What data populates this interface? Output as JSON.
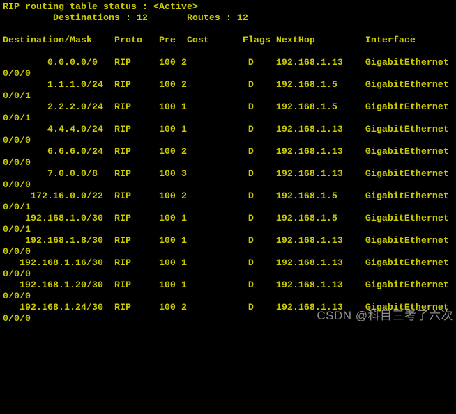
{
  "colors": {
    "background": "#000000",
    "terminal_text": "#cbcb00",
    "watermark_text": "#a8a8a8"
  },
  "terminal": {
    "title": "RIP routing table status : <Active>",
    "summary": {
      "destinations": "Destinations : 12",
      "routes": "Routes : 12"
    },
    "columns": [
      "Destination/Mask",
      "Proto",
      "Pre",
      "Cost",
      "Flags",
      "NextHop",
      "Interface"
    ],
    "routes": [
      {
        "ip": "0.0.0.0",
        "mask": "/0",
        "proto": "RIP",
        "pre": "100",
        "cost": "2",
        "flags": "D",
        "nexthop": "192.168.1.13",
        "interface": "GigabitEthernet",
        "interface_wrap": "0/0/0"
      },
      {
        "ip": "1.1.1.0",
        "mask": "/24",
        "proto": "RIP",
        "pre": "100",
        "cost": "2",
        "flags": "D",
        "nexthop": "192.168.1.5",
        "interface": "GigabitEthernet",
        "interface_wrap": "0/0/1"
      },
      {
        "ip": "2.2.2.0",
        "mask": "/24",
        "proto": "RIP",
        "pre": "100",
        "cost": "1",
        "flags": "D",
        "nexthop": "192.168.1.5",
        "interface": "GigabitEthernet",
        "interface_wrap": "0/0/1"
      },
      {
        "ip": "4.4.4.0",
        "mask": "/24",
        "proto": "RIP",
        "pre": "100",
        "cost": "1",
        "flags": "D",
        "nexthop": "192.168.1.13",
        "interface": "GigabitEthernet",
        "interface_wrap": "0/0/0"
      },
      {
        "ip": "6.6.6.0",
        "mask": "/24",
        "proto": "RIP",
        "pre": "100",
        "cost": "2",
        "flags": "D",
        "nexthop": "192.168.1.13",
        "interface": "GigabitEthernet",
        "interface_wrap": "0/0/0"
      },
      {
        "ip": "7.0.0.0",
        "mask": "/8",
        "proto": "RIP",
        "pre": "100",
        "cost": "3",
        "flags": "D",
        "nexthop": "192.168.1.13",
        "interface": "GigabitEthernet",
        "interface_wrap": "0/0/0"
      },
      {
        "ip": "172.16.0.0",
        "mask": "/22",
        "proto": "RIP",
        "pre": "100",
        "cost": "2",
        "flags": "D",
        "nexthop": "192.168.1.5",
        "interface": "GigabitEthernet",
        "interface_wrap": "0/0/1"
      },
      {
        "ip": "192.168.1.0",
        "mask": "/30",
        "proto": "RIP",
        "pre": "100",
        "cost": "1",
        "flags": "D",
        "nexthop": "192.168.1.5",
        "interface": "GigabitEthernet",
        "interface_wrap": "0/0/1"
      },
      {
        "ip": "192.168.1.8",
        "mask": "/30",
        "proto": "RIP",
        "pre": "100",
        "cost": "1",
        "flags": "D",
        "nexthop": "192.168.1.13",
        "interface": "GigabitEthernet",
        "interface_wrap": "0/0/0"
      },
      {
        "ip": "192.168.1.16",
        "mask": "/30",
        "proto": "RIP",
        "pre": "100",
        "cost": "1",
        "flags": "D",
        "nexthop": "192.168.1.13",
        "interface": "GigabitEthernet",
        "interface_wrap": "0/0/0"
      },
      {
        "ip": "192.168.1.20",
        "mask": "/30",
        "proto": "RIP",
        "pre": "100",
        "cost": "1",
        "flags": "D",
        "nexthop": "192.168.1.13",
        "interface": "GigabitEthernet",
        "interface_wrap": "0/0/0"
      },
      {
        "ip": "192.168.1.24",
        "mask": "/30",
        "proto": "RIP",
        "pre": "100",
        "cost": "2",
        "flags": "D",
        "nexthop": "192.168.1.13",
        "interface": "GigabitEthernet",
        "interface_wrap": "0/0/0"
      }
    ]
  },
  "watermark": "CSDN @科目三考了六次"
}
